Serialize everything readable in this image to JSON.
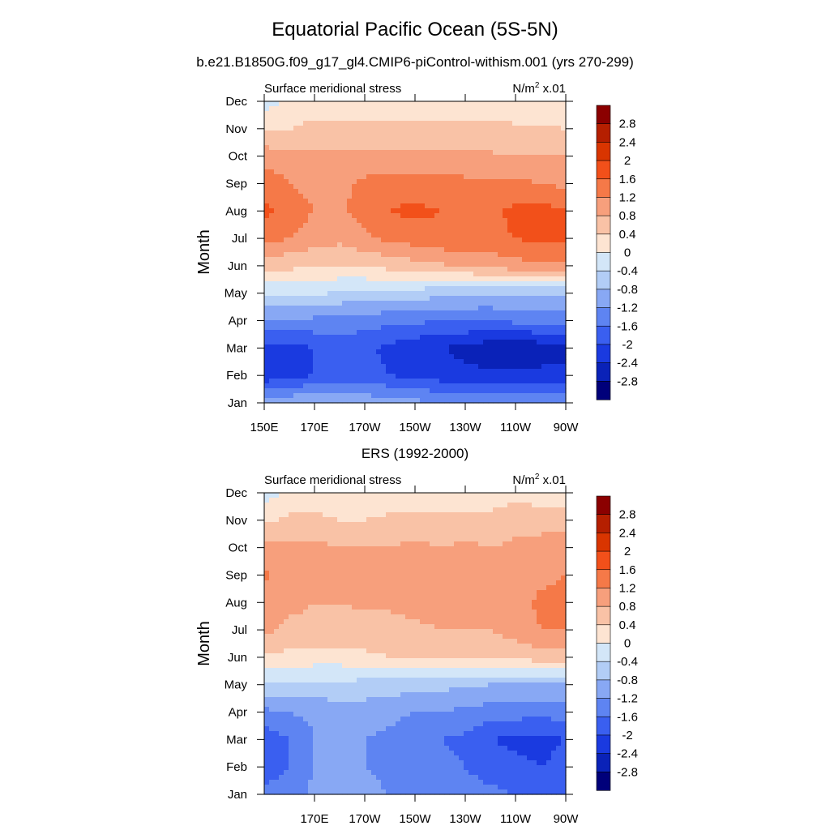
{
  "title": "Equatorial Pacific Ocean (5S-5N)",
  "subtitle": "b.e21.B1850G.f09_g17_gl4.CMIP6-piControl-withism.001 (yrs 270-299)",
  "colorbar": {
    "labels": [
      "2.8",
      "2.4",
      "2",
      "1.6",
      "1.2",
      "0.8",
      "0.4",
      "0",
      "-0.4",
      "-0.8",
      "-1.2",
      "-1.6",
      "-2",
      "-2.4",
      "-2.8"
    ],
    "colors": [
      "#8b0000",
      "#b51f00",
      "#d93500",
      "#f2501a",
      "#f57948",
      "#f79f7c",
      "#f9c2a6",
      "#fde4d2",
      "#d3e6f8",
      "#b2cdf6",
      "#88a8f4",
      "#5e84f2",
      "#3a5ff0",
      "#1a3ae0",
      "#0a22b8",
      "#00007a"
    ]
  },
  "chart_data": [
    {
      "type": "heatmap",
      "title": "",
      "left_label": "Surface meridional stress",
      "right_label": "N/m",
      "right_label_sup": "2",
      "right_label_suffix": " x.01",
      "ylabel": "Month",
      "xlabel": "",
      "y_ticks": [
        "Jan",
        "Feb",
        "Mar",
        "Apr",
        "May",
        "Jun",
        "Jul",
        "Aug",
        "Sep",
        "Oct",
        "Nov",
        "Dec"
      ],
      "x_ticks": [
        "150E",
        "170E",
        "170W",
        "150W",
        "130W",
        "110W",
        "90W"
      ],
      "x_tick_lons": [
        150,
        170,
        190,
        210,
        230,
        250,
        270
      ],
      "xlim": [
        150,
        270
      ],
      "ylim": [
        1,
        12
      ],
      "units": "N/m2 x.01",
      "contour_levels": [
        -2.8,
        -2.4,
        -2,
        -1.6,
        -1.2,
        -0.8,
        -0.4,
        0,
        0.4,
        0.8,
        1.2,
        1.6,
        2,
        2.4,
        2.8
      ],
      "lons": [
        150,
        160,
        170,
        180,
        190,
        200,
        210,
        220,
        230,
        240,
        250,
        260,
        270
      ],
      "months": [
        "Jan",
        "Feb",
        "Mar",
        "Apr",
        "May",
        "Jun",
        "Jul",
        "Aug",
        "Sep",
        "Oct",
        "Nov",
        "Dec"
      ],
      "values": [
        [
          -1.0,
          -0.9,
          -0.8,
          -0.8,
          -0.9,
          -1.0,
          -1.1,
          -1.2,
          -1.3,
          -1.3,
          -1.3,
          -1.3,
          -1.3
        ],
        [
          -2.3,
          -2.1,
          -2.0,
          -1.9,
          -1.9,
          -2.0,
          -2.1,
          -2.2,
          -2.3,
          -2.3,
          -2.3,
          -2.3,
          -2.3
        ],
        [
          -2.2,
          -2.1,
          -2.0,
          -1.8,
          -1.9,
          -2.1,
          -2.3,
          -2.4,
          -2.5,
          -2.7,
          -2.8,
          -2.6,
          -2.5
        ],
        [
          -1.3,
          -1.3,
          -1.3,
          -1.4,
          -1.4,
          -1.5,
          -1.5,
          -1.6,
          -1.6,
          -1.6,
          -1.5,
          -1.5,
          -1.5
        ],
        [
          -0.3,
          -0.3,
          -0.35,
          -0.45,
          -0.5,
          -0.55,
          -0.6,
          -0.65,
          -0.7,
          -0.75,
          -0.75,
          -0.75,
          -0.75
        ],
        [
          0.5,
          0.5,
          0.45,
          0.4,
          0.45,
          0.55,
          0.65,
          0.75,
          0.85,
          0.95,
          1.05,
          1.1,
          1.1
        ],
        [
          1.4,
          1.2,
          1.0,
          0.9,
          1.1,
          1.3,
          1.4,
          1.5,
          1.5,
          1.5,
          1.6,
          1.7,
          1.7
        ],
        [
          1.7,
          1.4,
          1.2,
          1.1,
          1.4,
          1.6,
          1.7,
          1.6,
          1.5,
          1.5,
          1.7,
          1.8,
          1.6
        ],
        [
          1.5,
          1.2,
          1.1,
          1.1,
          1.3,
          1.4,
          1.4,
          1.3,
          1.3,
          1.3,
          1.3,
          1.2,
          1.1
        ],
        [
          1.0,
          0.9,
          0.9,
          0.9,
          0.9,
          0.9,
          0.9,
          0.9,
          0.9,
          0.85,
          0.8,
          0.8,
          0.8
        ],
        [
          0.4,
          0.4,
          0.5,
          0.5,
          0.5,
          0.5,
          0.5,
          0.5,
          0.5,
          0.5,
          0.5,
          0.45,
          0.4
        ],
        [
          -0.2,
          0.1,
          0.2,
          0.2,
          0.2,
          0.2,
          0.1,
          0.1,
          0.2,
          0.1,
          0.0,
          0.0,
          0.0
        ]
      ]
    },
    {
      "type": "heatmap",
      "title": "ERS (1992-2000)",
      "left_label": "Surface meridional stress",
      "right_label": "N/m",
      "right_label_sup": "2",
      "right_label_suffix": " x.01",
      "ylabel": "Month",
      "xlabel": "",
      "y_ticks": [
        "Jan",
        "Feb",
        "Mar",
        "Apr",
        "May",
        "Jun",
        "Jul",
        "Aug",
        "Sep",
        "Oct",
        "Nov",
        "Dec"
      ],
      "x_ticks": [
        "170E",
        "170W",
        "150W",
        "130W",
        "110W",
        "90W"
      ],
      "x_tick_lons": [
        170,
        190,
        210,
        230,
        250,
        270
      ],
      "xlim": [
        150,
        270
      ],
      "ylim": [
        1,
        12
      ],
      "units": "N/m2 x.01",
      "contour_levels": [
        -2.8,
        -2.4,
        -2,
        -1.6,
        -1.2,
        -0.8,
        -0.4,
        0,
        0.4,
        0.8,
        1.2,
        1.6,
        2,
        2.4,
        2.8
      ],
      "lons": [
        150,
        160,
        170,
        180,
        190,
        200,
        210,
        220,
        230,
        240,
        250,
        260,
        270
      ],
      "months": [
        "Jan",
        "Feb",
        "Mar",
        "Apr",
        "May",
        "Jun",
        "Jul",
        "Aug",
        "Sep",
        "Oct",
        "Nov",
        "Dec"
      ],
      "values": [
        [
          -1.5,
          -1.4,
          -1.1,
          -1.0,
          -1.1,
          -1.2,
          -1.3,
          -1.4,
          -1.4,
          -1.5,
          -1.6,
          -1.6,
          -1.6
        ],
        [
          -1.8,
          -1.6,
          -1.2,
          -1.1,
          -1.2,
          -1.3,
          -1.4,
          -1.5,
          -1.6,
          -1.8,
          -1.9,
          -2.0,
          -1.9
        ],
        [
          -1.9,
          -1.6,
          -1.2,
          -1.1,
          -1.2,
          -1.3,
          -1.4,
          -1.6,
          -1.7,
          -2.0,
          -2.1,
          -2.1,
          -2.0
        ],
        [
          -1.3,
          -1.2,
          -1.1,
          -1.0,
          -1.0,
          -1.1,
          -1.2,
          -1.2,
          -1.3,
          -1.4,
          -1.4,
          -1.5,
          -1.4
        ],
        [
          -0.5,
          -0.5,
          -0.5,
          -0.5,
          -0.55,
          -0.6,
          -0.6,
          -0.7,
          -0.7,
          -0.8,
          -0.8,
          -0.8,
          -0.8
        ],
        [
          0.3,
          0.3,
          0.2,
          0.2,
          0.3,
          0.4,
          0.4,
          0.4,
          0.5,
          0.5,
          0.5,
          0.6,
          0.6
        ],
        [
          0.9,
          0.7,
          0.7,
          0.7,
          0.7,
          0.7,
          0.75,
          0.8,
          0.8,
          0.8,
          1.0,
          1.2,
          1.2
        ],
        [
          1.0,
          0.9,
          0.8,
          0.8,
          0.85,
          0.85,
          0.9,
          0.9,
          0.9,
          0.9,
          1.0,
          1.3,
          1.3
        ],
        [
          1.3,
          1.0,
          0.9,
          0.85,
          0.9,
          0.9,
          0.9,
          0.9,
          0.9,
          0.9,
          1.0,
          1.1,
          1.2
        ],
        [
          0.9,
          0.9,
          0.9,
          0.8,
          0.8,
          0.8,
          0.9,
          0.8,
          0.9,
          0.8,
          0.9,
          1.0,
          1.0
        ],
        [
          0.3,
          0.5,
          0.5,
          0.4,
          0.4,
          0.5,
          0.5,
          0.5,
          0.5,
          0.5,
          0.6,
          0.6,
          0.6
        ],
        [
          -0.2,
          0.1,
          0.2,
          0.1,
          0.0,
          0.1,
          0.0,
          0.1,
          0.2,
          0.2,
          0.3,
          0.2,
          0.1
        ]
      ]
    }
  ]
}
